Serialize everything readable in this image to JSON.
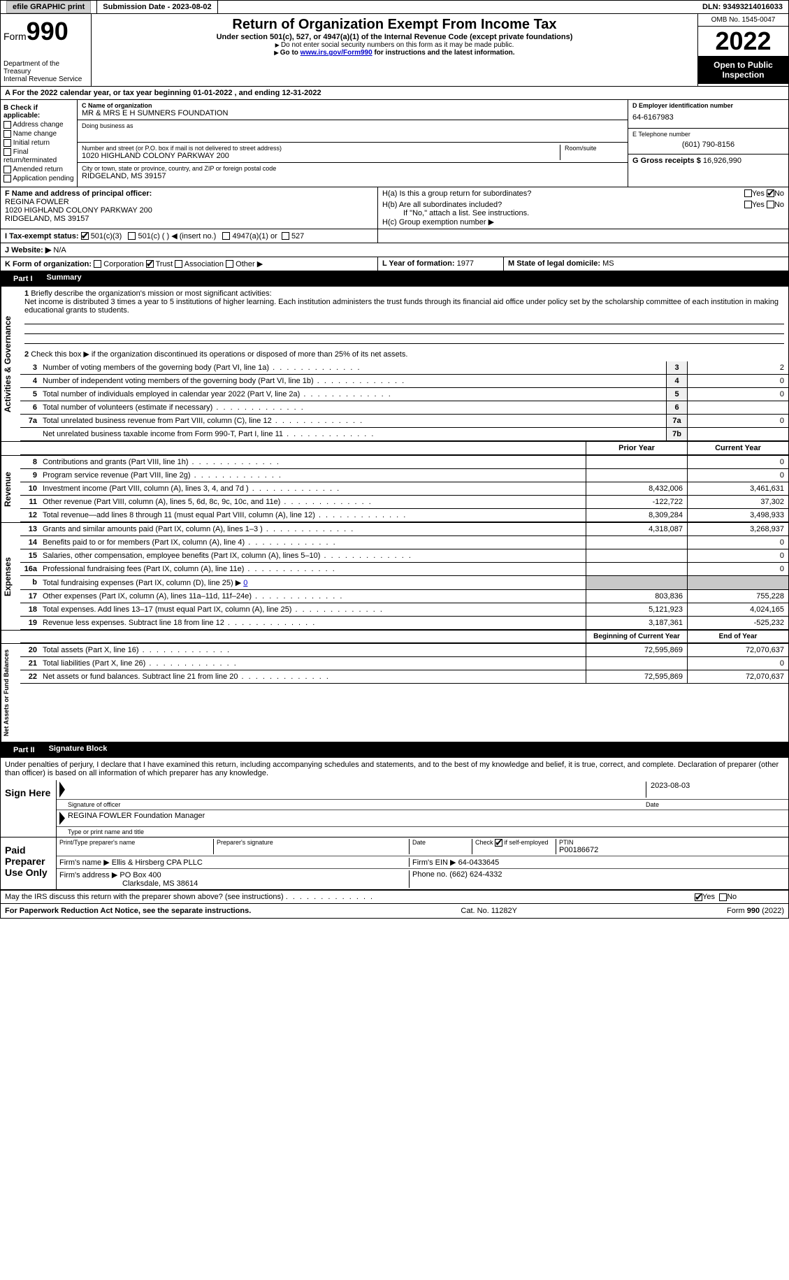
{
  "topbar": {
    "efile_label": "efile GRAPHIC print",
    "submission_label": "Submission Date - 2023-08-02",
    "dln_label": "DLN: 93493214016033"
  },
  "header": {
    "form_prefix": "Form",
    "form_number": "990",
    "dept": "Department of the Treasury",
    "irs": "Internal Revenue Service",
    "title": "Return of Organization Exempt From Income Tax",
    "subtitle": "Under section 501(c), 527, or 4947(a)(1) of the Internal Revenue Code (except private foundations)",
    "note1": "Do not enter social security numbers on this form as it may be made public.",
    "note2_pre": "Go to ",
    "note2_link": "www.irs.gov/Form990",
    "note2_post": " for instructions and the latest information.",
    "omb": "OMB No. 1545-0047",
    "year": "2022",
    "inspection": "Open to Public Inspection"
  },
  "period": {
    "line_a": "For the 2022 calendar year, or tax year beginning 01-01-2022   , and ending 12-31-2022"
  },
  "section_b": {
    "label": "B Check if applicable:",
    "items": [
      "Address change",
      "Name change",
      "Initial return",
      "Final return/terminated",
      "Amended return",
      "Application pending"
    ]
  },
  "section_c": {
    "name_label": "C Name of organization",
    "name": "MR & MRS E H SUMNERS FOUNDATION",
    "dba_label": "Doing business as",
    "dba": "",
    "street_label": "Number and street (or P.O. box if mail is not delivered to street address)",
    "street": "1020 HIGHLAND COLONY PARKWAY 200",
    "room_label": "Room/suite",
    "city_label": "City or town, state or province, country, and ZIP or foreign postal code",
    "city": "RIDGELAND, MS  39157"
  },
  "section_d": {
    "ein_label": "D Employer identification number",
    "ein": "64-6167983",
    "phone_label": "E Telephone number",
    "phone": "(601) 790-8156",
    "gross_label": "G Gross receipts $",
    "gross": "16,926,990"
  },
  "section_f": {
    "label": "F  Name and address of principal officer:",
    "name": "REGINA FOWLER",
    "addr1": "1020 HIGHLAND COLONY PARKWAY 200",
    "addr2": "RIDGELAND, MS  39157"
  },
  "section_h": {
    "ha_label": "H(a)  Is this a group return for subordinates?",
    "hb_label": "H(b)  Are all subordinates included?",
    "hb_note": "If \"No,\" attach a list. See instructions.",
    "hc_label": "H(c)  Group exemption number ▶",
    "yes": "Yes",
    "no": "No"
  },
  "section_i": {
    "label": "I    Tax-exempt status:",
    "opt1": "501(c)(3)",
    "opt2": "501(c) (  ) ◀ (insert no.)",
    "opt3": "4947(a)(1) or",
    "opt4": "527"
  },
  "section_j": {
    "label": "J   Website: ▶",
    "value": "N/A"
  },
  "section_k": {
    "label": "K Form of organization:",
    "opts": [
      "Corporation",
      "Trust",
      "Association",
      "Other ▶"
    ]
  },
  "section_l": {
    "label": "L Year of formation:",
    "value": "1977"
  },
  "section_m": {
    "label": "M State of legal domicile:",
    "value": "MS"
  },
  "part1": {
    "header": "Part I",
    "title": "Summary",
    "side_ag": "Activities & Governance",
    "side_rev": "Revenue",
    "side_exp": "Expenses",
    "side_net": "Net Assets or Fund Balances",
    "line1_label": "Briefly describe the organization's mission or most significant activities:",
    "line1_text": "Net income is distributed 3 times a year to 5 institutions of higher learning. Each institution administers the trust funds through its financial aid office under policy set by the scholarship committee of each institution in making educational grants to students.",
    "line2": "Check this box ▶       if the organization discontinued its operations or disposed of more than 25% of its net assets.",
    "lines_small": [
      {
        "n": "3",
        "d": "Number of voting members of the governing body (Part VI, line 1a)",
        "b": "3",
        "v": "2"
      },
      {
        "n": "4",
        "d": "Number of independent voting members of the governing body (Part VI, line 1b)",
        "b": "4",
        "v": "0"
      },
      {
        "n": "5",
        "d": "Total number of individuals employed in calendar year 2022 (Part V, line 2a)",
        "b": "5",
        "v": "0"
      },
      {
        "n": "6",
        "d": "Total number of volunteers (estimate if necessary)",
        "b": "6",
        "v": ""
      },
      {
        "n": "7a",
        "d": "Total unrelated business revenue from Part VIII, column (C), line 12",
        "b": "7a",
        "v": "0"
      },
      {
        "n": "",
        "d": "Net unrelated business taxable income from Form 990-T, Part I, line 11",
        "b": "7b",
        "v": ""
      }
    ],
    "col_prior": "Prior Year",
    "col_current": "Current Year",
    "revenue": [
      {
        "n": "8",
        "d": "Contributions and grants (Part VIII, line 1h)",
        "p": "",
        "c": "0"
      },
      {
        "n": "9",
        "d": "Program service revenue (Part VIII, line 2g)",
        "p": "",
        "c": "0"
      },
      {
        "n": "10",
        "d": "Investment income (Part VIII, column (A), lines 3, 4, and 7d )",
        "p": "8,432,006",
        "c": "3,461,631"
      },
      {
        "n": "11",
        "d": "Other revenue (Part VIII, column (A), lines 5, 6d, 8c, 9c, 10c, and 11e)",
        "p": "-122,722",
        "c": "37,302"
      },
      {
        "n": "12",
        "d": "Total revenue—add lines 8 through 11 (must equal Part VIII, column (A), line 12)",
        "p": "8,309,284",
        "c": "3,498,933"
      }
    ],
    "expenses": [
      {
        "n": "13",
        "d": "Grants and similar amounts paid (Part IX, column (A), lines 1–3 )",
        "p": "4,318,087",
        "c": "3,268,937"
      },
      {
        "n": "14",
        "d": "Benefits paid to or for members (Part IX, column (A), line 4)",
        "p": "",
        "c": "0"
      },
      {
        "n": "15",
        "d": "Salaries, other compensation, employee benefits (Part IX, column (A), lines 5–10)",
        "p": "",
        "c": "0"
      },
      {
        "n": "16a",
        "d": "Professional fundraising fees (Part IX, column (A), line 11e)",
        "p": "",
        "c": "0"
      }
    ],
    "line16b_label": "Total fundraising expenses (Part IX, column (D), line 25) ▶",
    "line16b_val": "0",
    "expenses2": [
      {
        "n": "17",
        "d": "Other expenses (Part IX, column (A), lines 11a–11d, 11f–24e)",
        "p": "803,836",
        "c": "755,228"
      },
      {
        "n": "18",
        "d": "Total expenses. Add lines 13–17 (must equal Part IX, column (A), line 25)",
        "p": "5,121,923",
        "c": "4,024,165"
      },
      {
        "n": "19",
        "d": "Revenue less expenses. Subtract line 18 from line 12",
        "p": "3,187,361",
        "c": "-525,232"
      }
    ],
    "col_begin": "Beginning of Current Year",
    "col_end": "End of Year",
    "netassets": [
      {
        "n": "20",
        "d": "Total assets (Part X, line 16)",
        "p": "72,595,869",
        "c": "72,070,637"
      },
      {
        "n": "21",
        "d": "Total liabilities (Part X, line 26)",
        "p": "",
        "c": "0"
      },
      {
        "n": "22",
        "d": "Net assets or fund balances. Subtract line 21 from line 20",
        "p": "72,595,869",
        "c": "72,070,637"
      }
    ]
  },
  "part2": {
    "header": "Part II",
    "title": "Signature Block",
    "perjury": "Under penalties of perjury, I declare that I have examined this return, including accompanying schedules and statements, and to the best of my knowledge and belief, it is true, correct, and complete. Declaration of preparer (other than officer) is based on all information of which preparer has any knowledge.",
    "sign_here": "Sign Here",
    "sig_officer": "Signature of officer",
    "sig_date": "2023-08-03",
    "date_label": "Date",
    "officer_name": "REGINA FOWLER  Foundation Manager",
    "type_name": "Type or print name and title",
    "paid": "Paid Preparer Use Only",
    "print_name_label": "Print/Type preparer's name",
    "prep_sig_label": "Preparer's signature",
    "check_self": "Check         if self-employed",
    "ptin_label": "PTIN",
    "ptin": "P00186672",
    "firm_name_label": "Firm's name    ▶",
    "firm_name": "Ellis & Hirsberg CPA PLLC",
    "firm_ein_label": "Firm's EIN ▶",
    "firm_ein": "64-0433645",
    "firm_addr_label": "Firm's address ▶",
    "firm_addr": "PO Box 400",
    "firm_city": "Clarksdale, MS  38614",
    "firm_phone_label": "Phone no.",
    "firm_phone": "(662) 624-4332",
    "discuss": "May the IRS discuss this return with the preparer shown above? (see instructions)",
    "yes": "Yes",
    "no": "No"
  },
  "footer": {
    "pra": "For Paperwork Reduction Act Notice, see the separate instructions.",
    "cat": "Cat. No. 11282Y",
    "form": "Form 990 (2022)"
  },
  "colors": {
    "black": "#000000",
    "white": "#ffffff",
    "gray_bg": "#c8c8c8",
    "btn_bg": "#d0d0d0",
    "link": "#0000cc"
  }
}
